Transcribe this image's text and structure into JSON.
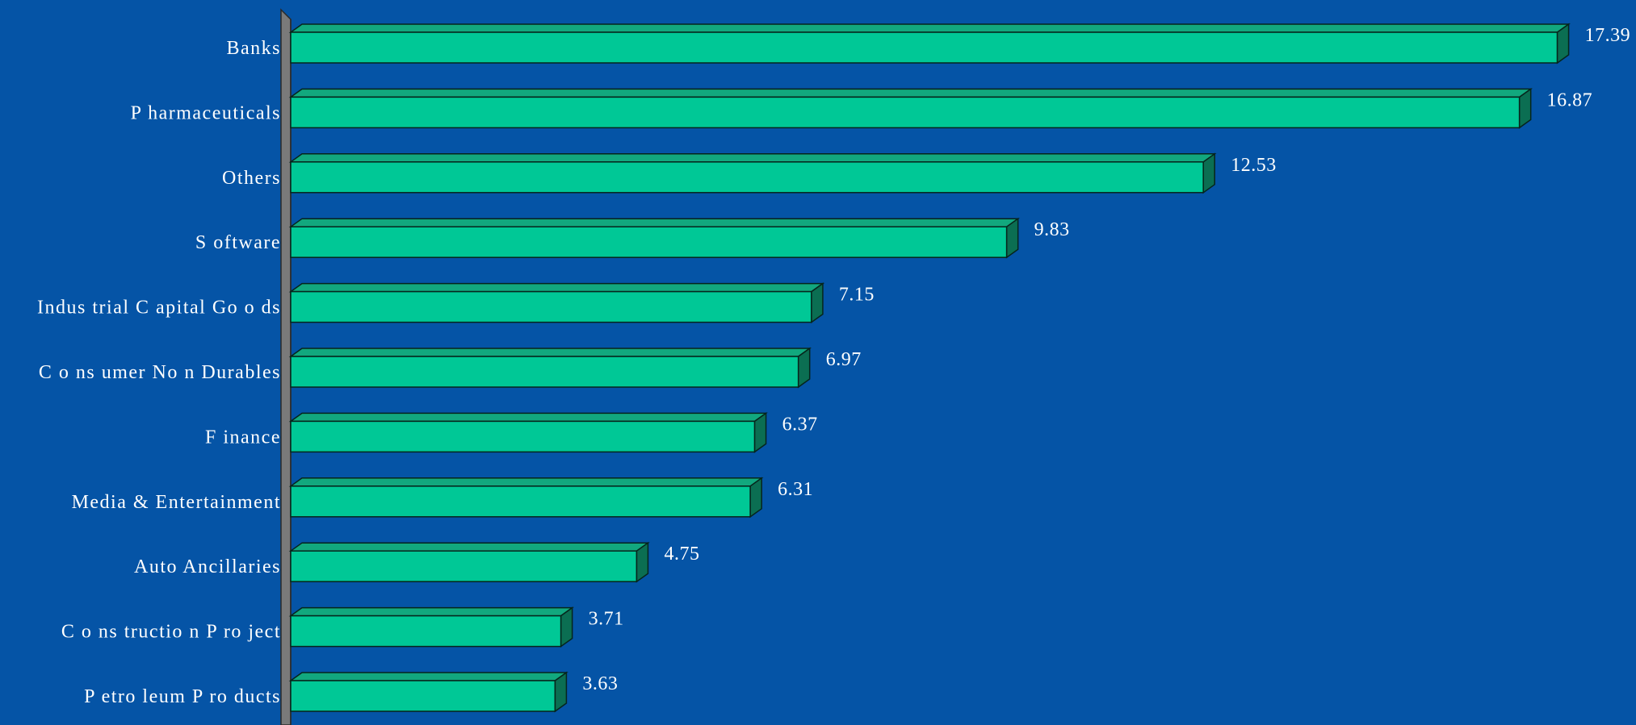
{
  "chart_data": {
    "type": "bar",
    "orientation": "horizontal",
    "style": "3d",
    "categories": [
      "Banks",
      "P harmaceuticals",
      "Others",
      "S oftware",
      "Indus trial C apital Go o ds",
      "C o ns umer No n Durables",
      "F inance",
      "Media & Entertainment",
      "Auto  Ancillaries",
      "C o ns tructio n P ro ject",
      "P etro leum P ro ducts"
    ],
    "values": [
      17.39,
      16.87,
      12.53,
      9.83,
      7.15,
      6.97,
      6.37,
      6.31,
      4.75,
      3.71,
      3.63
    ],
    "value_labels": [
      "17.39",
      "16.87",
      "12.53",
      "9.83",
      "7.15",
      "6.97",
      "6.37",
      "6.31",
      "4.75",
      "3.71",
      "3.63"
    ],
    "title": "",
    "xlabel": "",
    "ylabel": "",
    "xlim": [
      0,
      17.39
    ],
    "grid": false,
    "legend": "none",
    "colors": {
      "background": "#0554a6",
      "bar_front": "#00c896",
      "bar_top": "#12a87e",
      "bar_side": "#0b6e52",
      "bar_outline": "#06251c",
      "wall": "#7a7a7a",
      "label": "#ffffff"
    }
  }
}
